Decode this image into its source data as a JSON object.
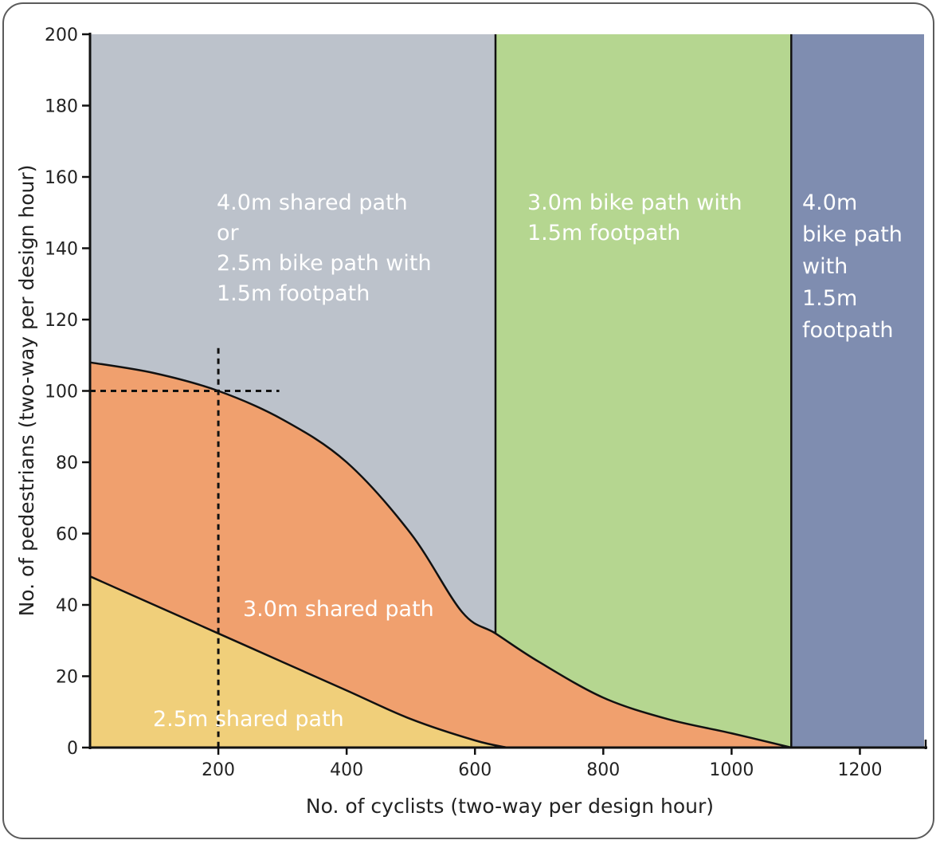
{
  "chart_data": {
    "type": "area",
    "title": "",
    "xlabel": "No. of cyclists (two-way per design hour)",
    "ylabel": "No. of pedestrians (two-way per design hour)",
    "xlim": [
      0,
      1300
    ],
    "ylim": [
      0,
      200
    ],
    "x_ticks": [
      "200",
      "400",
      "600",
      "800",
      "1000",
      "1200"
    ],
    "y_ticks": [
      "0",
      "20",
      "40",
      "60",
      "80",
      "100",
      "120",
      "140",
      "160",
      "180",
      "200"
    ],
    "grid": false,
    "legend": "none",
    "colors": {
      "upper_region": "#bcc2cb",
      "middle_region": "#f0a06e",
      "lower_region": "#f0cf7a",
      "green_region": "#b5d690",
      "blue_region": "#7f8db0"
    },
    "boundaries": {
      "upper_curve": [
        [
          0,
          108
        ],
        [
          100,
          105
        ],
        [
          200,
          100
        ],
        [
          300,
          92
        ],
        [
          400,
          80
        ],
        [
          500,
          60
        ],
        [
          580,
          38
        ],
        [
          632,
          32
        ],
        [
          700,
          24
        ],
        [
          800,
          14
        ],
        [
          900,
          8
        ],
        [
          1000,
          4
        ],
        [
          1093,
          0
        ]
      ],
      "lower_curve": [
        [
          0,
          48
        ],
        [
          100,
          40
        ],
        [
          200,
          32
        ],
        [
          300,
          24
        ],
        [
          400,
          16
        ],
        [
          500,
          8
        ],
        [
          600,
          2
        ],
        [
          650,
          0
        ]
      ],
      "vertical_dividers": [
        632,
        1093
      ]
    },
    "regions": [
      {
        "label_lines": [
          "4.0m shared path",
          "or",
          "2.5m bike path with",
          "1.5m footpath"
        ]
      },
      {
        "label_lines": [
          "3.0m shared path"
        ]
      },
      {
        "label_lines": [
          "2.5m shared path"
        ]
      },
      {
        "label_lines": [
          "3.0m bike path with",
          "1.5m footpath"
        ]
      },
      {
        "label_lines": [
          "4.0m",
          "bike path",
          "with",
          "1.5m",
          "footpath"
        ]
      }
    ],
    "reference_point": {
      "x": 200,
      "y": 100
    }
  }
}
